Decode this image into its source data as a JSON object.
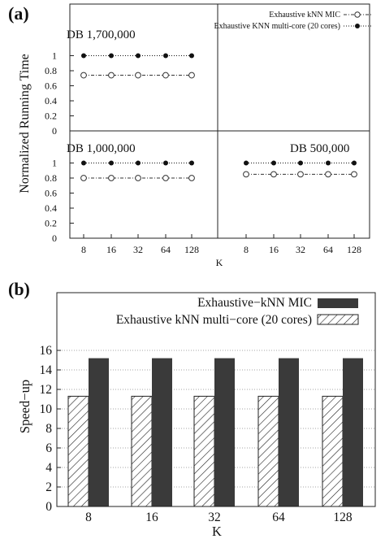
{
  "figure_a": {
    "panel_label": "(a)",
    "db_labels": [
      "DB 1,700,000",
      "DB 1,000,000",
      "DB 500,000"
    ],
    "legend": [
      "Exhaustive kNN MIC",
      "Exhaustive KNN multi-core (20 cores)"
    ]
  },
  "figure_b": {
    "panel_label": "(b)",
    "legend": [
      "Exhaustive−kNN MIC",
      "Exhaustive kNN multi−core (20 cores)"
    ]
  },
  "chart_data": [
    {
      "type": "line",
      "title": "",
      "ylabel": "Normalized Running Time",
      "xlabel": "K",
      "yticks": [
        "0",
        "0.2",
        "0.4",
        "0.6",
        "0.8",
        "1"
      ],
      "panels": [
        {
          "label": "DB 1,700,000",
          "categories": [
            "8",
            "16",
            "32",
            "64",
            "128"
          ],
          "ylim": [
            0,
            1.2
          ],
          "series": [
            {
              "name": "Exhaustive kNN MIC",
              "values": [
                0.74,
                0.74,
                0.74,
                0.74,
                0.74
              ]
            },
            {
              "name": "Exhaustive KNN multi-core (20 cores)",
              "values": [
                1.0,
                1.0,
                1.0,
                1.0,
                1.0
              ]
            }
          ]
        },
        {
          "label": "DB 1,000,000",
          "categories": [
            "8",
            "16",
            "32",
            "64",
            "128"
          ],
          "ylim": [
            0,
            1.2
          ],
          "series": [
            {
              "name": "Exhaustive kNN MIC",
              "values": [
                0.8,
                0.8,
                0.8,
                0.8,
                0.8
              ]
            },
            {
              "name": "Exhaustive KNN multi-core (20 cores)",
              "values": [
                1.0,
                1.0,
                1.0,
                1.0,
                1.0
              ]
            }
          ]
        },
        {
          "label": "DB 500,000",
          "categories": [
            "8",
            "16",
            "32",
            "64",
            "128"
          ],
          "ylim": [
            0,
            1.2
          ],
          "series": [
            {
              "name": "Exhaustive kNN MIC",
              "values": [
                0.85,
                0.85,
                0.85,
                0.85,
                0.85
              ]
            },
            {
              "name": "Exhaustive KNN multi-core (20 cores)",
              "values": [
                1.0,
                1.0,
                1.0,
                1.0,
                1.0
              ]
            }
          ]
        }
      ],
      "legend_position": "top-right",
      "grid": false,
      "colors": {
        "mic": "#333333",
        "multicore": "#111111"
      }
    },
    {
      "type": "bar",
      "title": "",
      "ylabel": "Speed−up",
      "xlabel": "K",
      "categories": [
        "8",
        "16",
        "32",
        "64",
        "128"
      ],
      "ylim": [
        0,
        16
      ],
      "yticks": [
        0,
        2,
        4,
        6,
        8,
        10,
        12,
        14,
        16
      ],
      "series": [
        {
          "name": "Exhaustive kNN multi−core (20 cores)",
          "values": [
            11.3,
            11.3,
            11.3,
            11.3,
            11.3
          ],
          "pattern": "diagonal-hatch"
        },
        {
          "name": "Exhaustive−kNN MIC",
          "values": [
            15.2,
            15.2,
            15.2,
            15.2,
            15.2
          ],
          "color": "#3a3a3a"
        }
      ],
      "legend_position": "top-right",
      "grid": true
    }
  ]
}
